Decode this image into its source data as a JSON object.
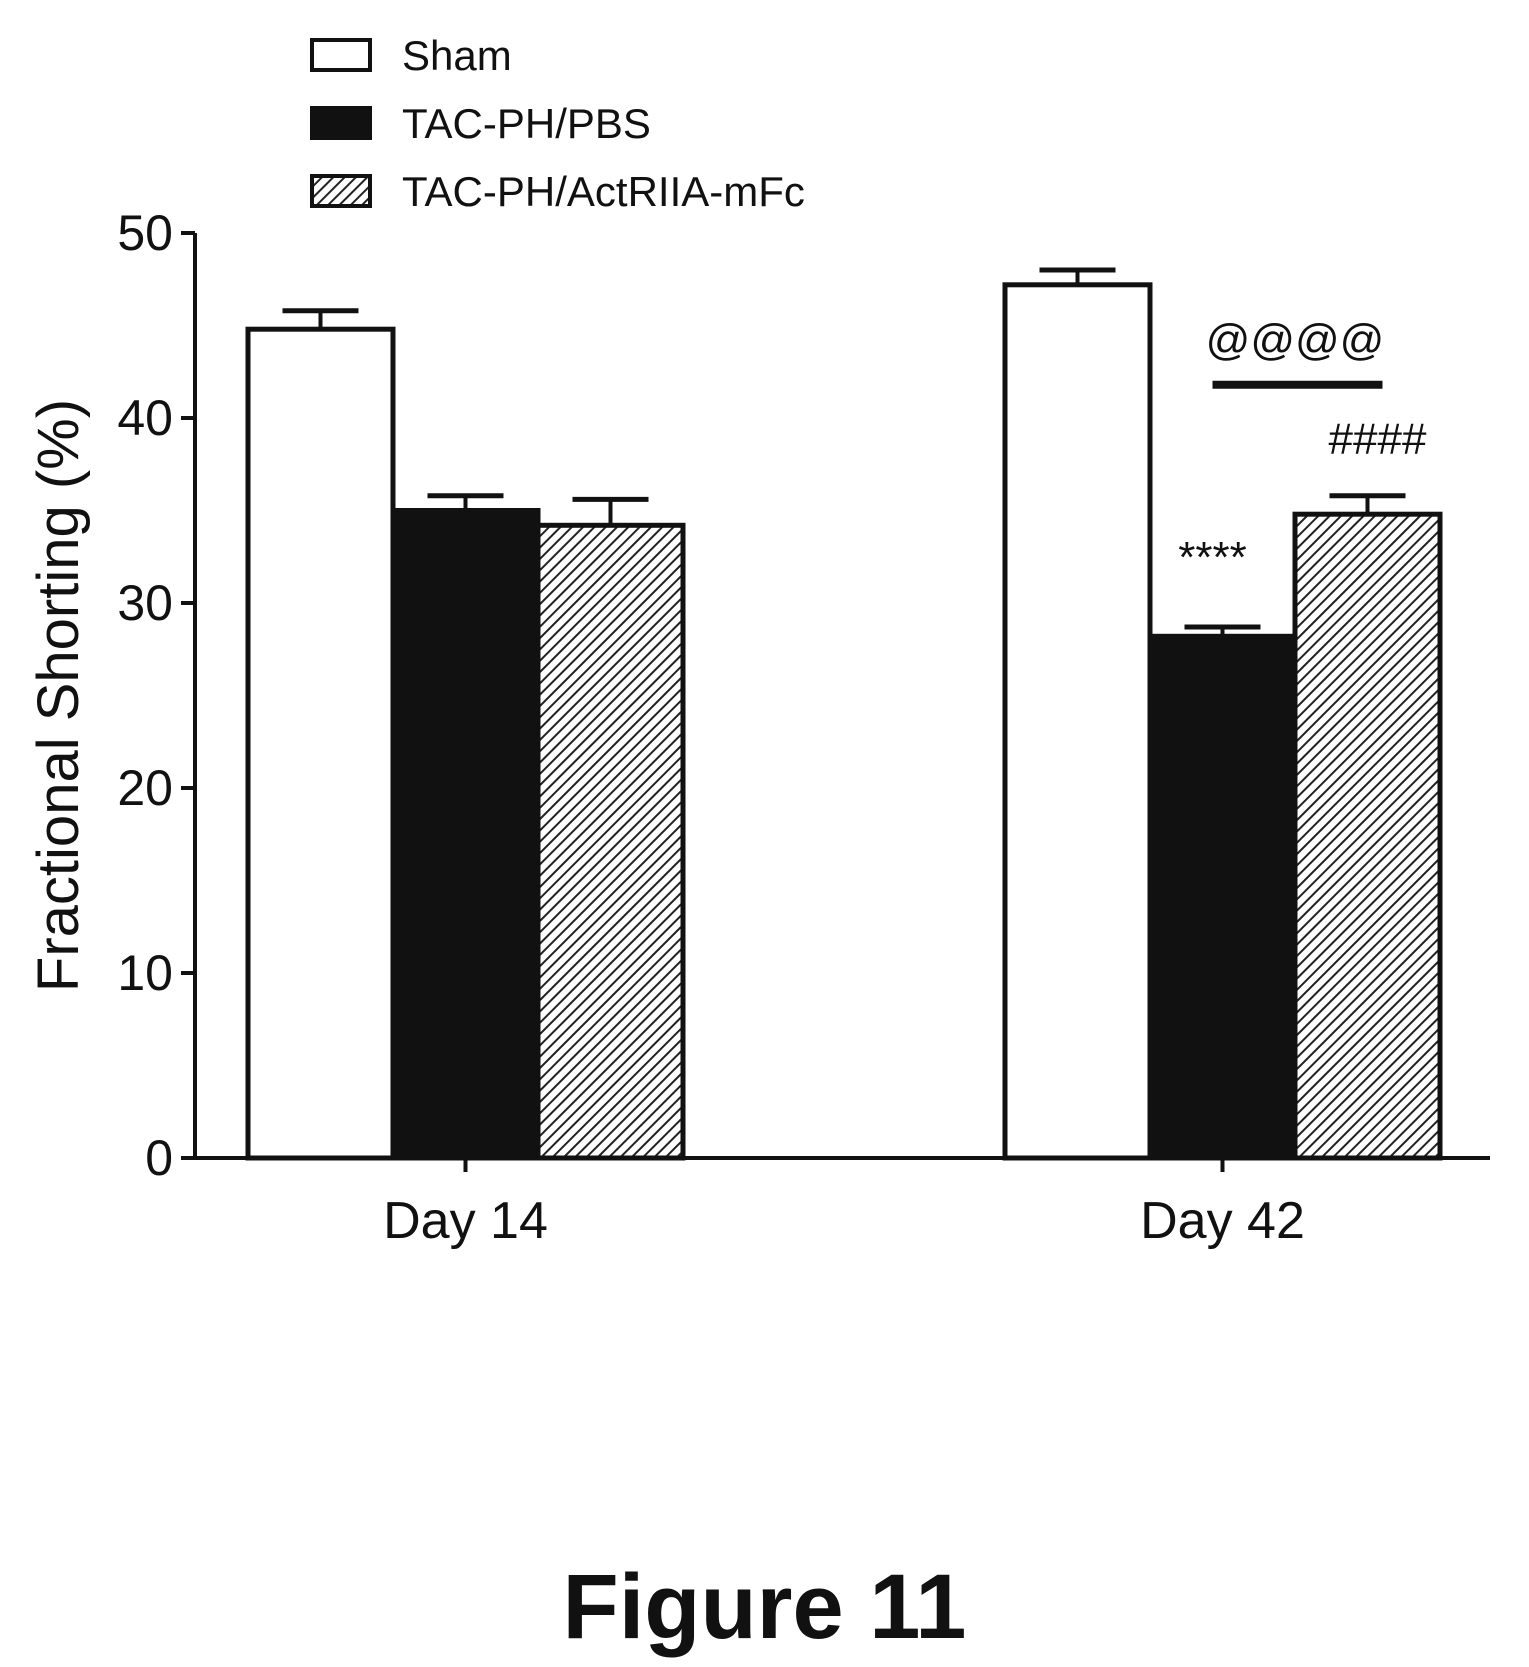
{
  "figure_caption": "Figure 11",
  "colors": {
    "Sham": "#ffffff",
    "TAC-PH/PBS": "#111111",
    "TAC-PH/ActRIIA-mFc": "hatched"
  },
  "chart_data": {
    "type": "bar",
    "title": "",
    "xlabel": "",
    "ylabel": "Fractional Shorting (%)",
    "ylim": [
      0,
      50
    ],
    "yticks": [
      "0",
      "10",
      "20",
      "30",
      "40",
      "50"
    ],
    "categories": [
      "Day 14",
      "Day 42"
    ],
    "legend_position": "top-left",
    "series": [
      {
        "name": "Sham",
        "values": [
          44.8,
          47.2
        ],
        "errors": [
          1.0,
          0.8
        ],
        "fill": "white"
      },
      {
        "name": "TAC-PH/PBS",
        "values": [
          35.0,
          28.2
        ],
        "errors": [
          0.8,
          0.5
        ],
        "fill": "black"
      },
      {
        "name": "TAC-PH/ActRIIA-mFc",
        "values": [
          34.2,
          34.8
        ],
        "errors": [
          1.4,
          1.0
        ],
        "fill": "hatched"
      }
    ],
    "annotations": [
      {
        "text": "****",
        "category": "Day 42",
        "series": "TAC-PH/PBS"
      },
      {
        "text": "####",
        "category": "Day 42",
        "series": "TAC-PH/ActRIIA-mFc"
      },
      {
        "text": "@@@@",
        "category": "Day 42",
        "series": "TAC-PH/ActRIIA-mFc",
        "bracket": true
      }
    ]
  }
}
